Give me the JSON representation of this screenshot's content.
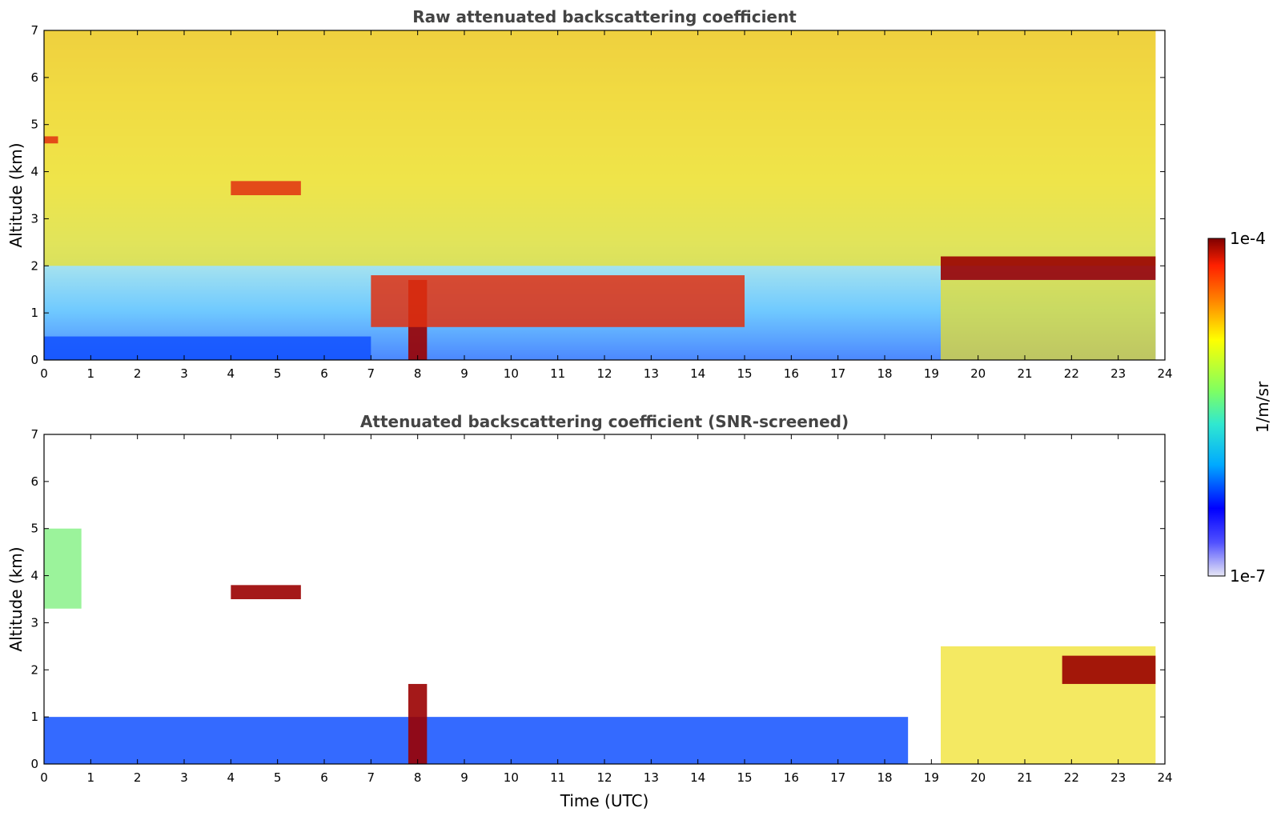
{
  "chart_data": [
    {
      "type": "heatmap",
      "title": "Raw attenuated backscattering coefficient",
      "xlabel": "",
      "ylabel": "Altitude (km)",
      "xlim": [
        0,
        24
      ],
      "ylim": [
        0,
        7
      ],
      "xticks": [
        0,
        1,
        2,
        3,
        4,
        5,
        6,
        7,
        8,
        9,
        10,
        11,
        12,
        13,
        14,
        15,
        16,
        17,
        18,
        19,
        20,
        21,
        22,
        23,
        24
      ],
      "yticks": [
        0,
        1,
        2,
        3,
        4,
        5,
        6,
        7
      ],
      "grid": false,
      "data_coverage_x": [
        0,
        23.8
      ],
      "features": [
        {
          "name": "background noise",
          "x": [
            0,
            23.8
          ],
          "y": [
            2,
            7
          ],
          "level": "medium-high"
        },
        {
          "name": "elevated layer",
          "x": [
            0,
            0.3
          ],
          "y": [
            4.6,
            4.75
          ],
          "level": "high"
        },
        {
          "name": "elevated layer",
          "x": [
            4,
            5.5
          ],
          "y": [
            3.5,
            3.8
          ],
          "level": "high"
        },
        {
          "name": "boundary layer",
          "x": [
            0,
            7
          ],
          "y": [
            0,
            0.5
          ],
          "level": "low"
        },
        {
          "name": "convective plumes",
          "x": [
            7.8,
            8.2
          ],
          "y": [
            0,
            1.7
          ],
          "level": "very high"
        },
        {
          "name": "cloud tops",
          "x": [
            7,
            15
          ],
          "y": [
            0.7,
            1.8
          ],
          "level": "high"
        },
        {
          "name": "residual layer",
          "x": [
            19.2,
            23.8
          ],
          "y": [
            0,
            1.7
          ],
          "level": "medium-high"
        },
        {
          "name": "cloud layer",
          "x": [
            19.2,
            23.8
          ],
          "y": [
            1.7,
            2.2
          ],
          "level": "very high"
        }
      ]
    },
    {
      "type": "heatmap",
      "title": "Attenuated backscattering coefficient (SNR-screened)",
      "xlabel": "Time (UTC)",
      "ylabel": "Altitude (km)",
      "xlim": [
        0,
        24
      ],
      "ylim": [
        0,
        7
      ],
      "xticks": [
        0,
        1,
        2,
        3,
        4,
        5,
        6,
        7,
        8,
        9,
        10,
        11,
        12,
        13,
        14,
        15,
        16,
        17,
        18,
        19,
        20,
        21,
        22,
        23,
        24
      ],
      "yticks": [
        0,
        1,
        2,
        3,
        4,
        5,
        6,
        7
      ],
      "grid": false,
      "data_coverage_x": [
        0,
        23.8
      ],
      "screened_out": "white",
      "features": [
        {
          "name": "elevated layer",
          "x": [
            0,
            0.8
          ],
          "y": [
            3.3,
            5.0
          ],
          "level": "medium"
        },
        {
          "name": "elevated layer",
          "x": [
            4,
            5.5
          ],
          "y": [
            3.5,
            3.8
          ],
          "level": "very high"
        },
        {
          "name": "boundary layer",
          "x": [
            0,
            18.5
          ],
          "y": [
            0,
            1.0
          ],
          "level": "low"
        },
        {
          "name": "convective plumes",
          "x": [
            7.8,
            8.2
          ],
          "y": [
            0,
            1.7
          ],
          "level": "very high"
        },
        {
          "name": "residual layer",
          "x": [
            19.2,
            23.8
          ],
          "y": [
            0,
            2.5
          ],
          "level": "medium-high"
        },
        {
          "name": "cloud layer",
          "x": [
            21.8,
            23.8
          ],
          "y": [
            1.7,
            2.3
          ],
          "level": "very high"
        }
      ]
    }
  ],
  "colorbar": {
    "label": "1/m/sr",
    "min_label": "1e-7",
    "max_label": "1e-4",
    "scale": "log",
    "range": [
      1e-07,
      0.0001
    ],
    "colormap": [
      "#e6e6f5",
      "#0000ff",
      "#00b4ff",
      "#40e0c0",
      "#80ff60",
      "#ffff00",
      "#ff8000",
      "#ff2000",
      "#7f0000"
    ]
  }
}
